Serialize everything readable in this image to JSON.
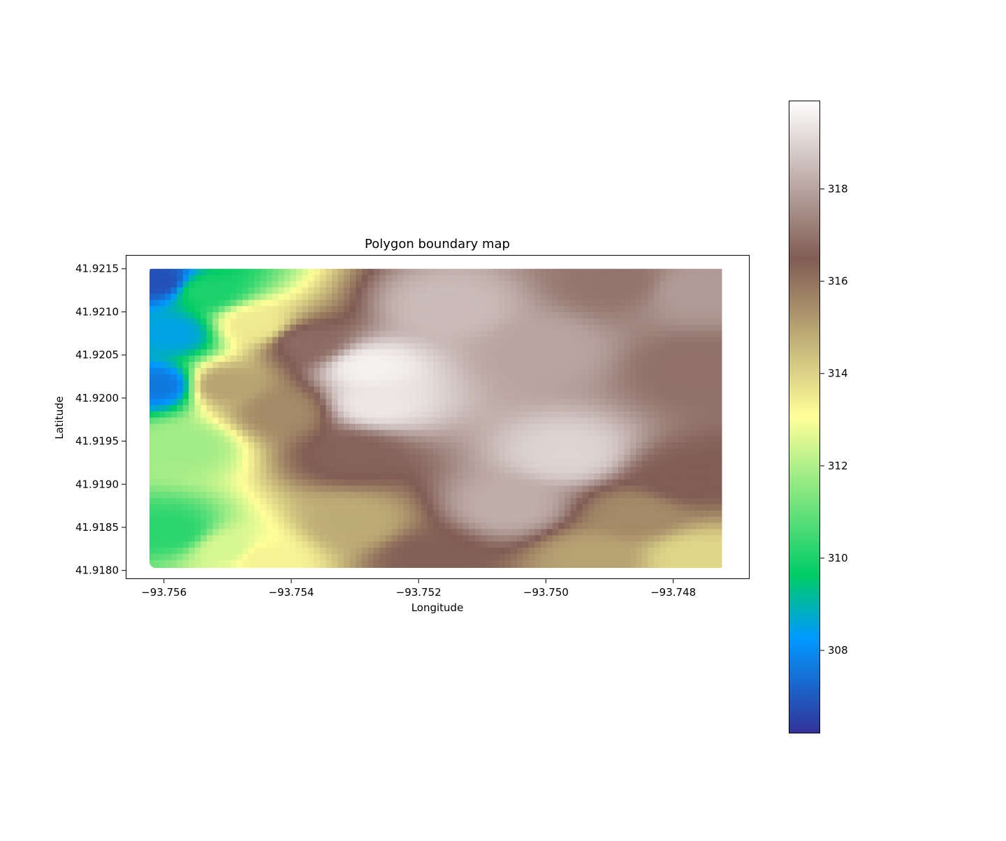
{
  "chart_data": {
    "type": "scatter",
    "title": "Polygon boundary map",
    "xlabel": "Longitude",
    "ylabel": "Latitude",
    "xlim": [
      -93.7566,
      -93.7468
    ],
    "ylim": [
      41.9179,
      41.92166
    ],
    "x_ticks": [
      -93.756,
      -93.754,
      -93.752,
      -93.75,
      -93.748
    ],
    "x_tick_labels": [
      "−93.756",
      "−93.754",
      "−93.752",
      "−93.750",
      "−93.748"
    ],
    "y_ticks": [
      41.918,
      41.9185,
      41.919,
      41.9195,
      41.92,
      41.9205,
      41.921,
      41.9215
    ],
    "y_tick_labels": [
      "41.9180",
      "41.9185",
      "41.9190",
      "41.9195",
      "41.9200",
      "41.9205",
      "41.9210",
      "41.9215"
    ],
    "data_extent": {
      "lon": [
        -93.7562,
        -93.7473
      ],
      "lat": [
        41.918,
        41.92145
      ]
    },
    "grid": false,
    "colormap": "terrain",
    "colorbar": {
      "range": [
        306.2,
        319.9
      ],
      "ticks": [
        308,
        310,
        312,
        314,
        316,
        318
      ],
      "tick_labels": [
        "308",
        "310",
        "312",
        "314",
        "316",
        "318"
      ]
    },
    "surface_description_points": [
      {
        "lon": -93.756,
        "lat": 41.9213,
        "value": 306.8
      },
      {
        "lon": -93.756,
        "lat": 41.9201,
        "value": 307.6
      },
      {
        "lon": -93.7558,
        "lat": 41.9207,
        "value": 308.5
      },
      {
        "lon": -93.7553,
        "lat": 41.9212,
        "value": 310.0
      },
      {
        "lon": -93.7558,
        "lat": 41.9184,
        "value": 310.2
      },
      {
        "lon": -93.7556,
        "lat": 41.9194,
        "value": 311.8
      },
      {
        "lon": -93.7549,
        "lat": 41.9182,
        "value": 312.5
      },
      {
        "lon": -93.7545,
        "lat": 41.9208,
        "value": 313.5
      },
      {
        "lon": -93.7544,
        "lat": 41.9181,
        "value": 313.3
      },
      {
        "lon": -93.753,
        "lat": 41.9185,
        "value": 314.8
      },
      {
        "lon": -93.7541,
        "lat": 41.9198,
        "value": 315.5
      },
      {
        "lon": -93.753,
        "lat": 41.9193,
        "value": 316.6
      },
      {
        "lon": -93.7518,
        "lat": 41.9181,
        "value": 316.4
      },
      {
        "lon": -93.7527,
        "lat": 41.9203,
        "value": 319.6
      },
      {
        "lon": -93.7526,
        "lat": 41.9199,
        "value": 319.4
      },
      {
        "lon": -93.7515,
        "lat": 41.921,
        "value": 318.5
      },
      {
        "lon": -93.75,
        "lat": 41.9205,
        "value": 318.0
      },
      {
        "lon": -93.7496,
        "lat": 41.9193,
        "value": 319.0
      },
      {
        "lon": -93.7505,
        "lat": 41.9187,
        "value": 318.2
      },
      {
        "lon": -93.7488,
        "lat": 41.9213,
        "value": 317.0
      },
      {
        "lon": -93.7476,
        "lat": 41.9212,
        "value": 317.8
      },
      {
        "lon": -93.7476,
        "lat": 41.9203,
        "value": 316.9
      },
      {
        "lon": -93.7478,
        "lat": 41.919,
        "value": 316.5
      },
      {
        "lon": -93.7485,
        "lat": 41.9186,
        "value": 315.5
      },
      {
        "lon": -93.7492,
        "lat": 41.9181,
        "value": 315.0
      },
      {
        "lon": -93.7476,
        "lat": 41.9181,
        "value": 313.9
      },
      {
        "lon": -93.755,
        "lat": 41.9201,
        "value": 315.0
      },
      {
        "lon": -93.7537,
        "lat": 41.9206,
        "value": 316.8
      }
    ]
  }
}
